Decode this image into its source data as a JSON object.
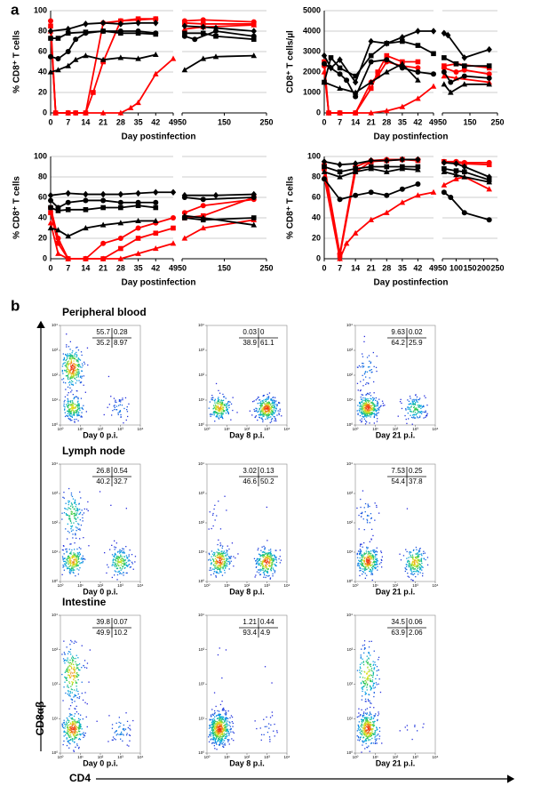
{
  "panel_labels": [
    "a",
    "b"
  ],
  "chart_data": [
    {
      "type": "line",
      "ylabel": "% CD8⁺ T cells",
      "xlabel": "Day postinfection",
      "ylim": [
        0,
        100
      ],
      "yticks": [
        0,
        20,
        40,
        60,
        80,
        100
      ],
      "grid": true,
      "x_segments": [
        {
          "xlim": [
            0,
            49
          ],
          "xticks": [
            0,
            7,
            14,
            21,
            28,
            35,
            42,
            49
          ]
        },
        {
          "xlim": [
            50,
            250
          ],
          "xticks": [
            50,
            150,
            250
          ]
        }
      ],
      "series": [
        {
          "color": "#ff0000",
          "marker": "circle",
          "x": [
            0,
            2,
            7,
            10,
            14,
            21,
            28,
            35,
            42,
            56,
            100,
            220
          ],
          "values": [
            90,
            0,
            0,
            0,
            0,
            88,
            90,
            91,
            92,
            90,
            91,
            89
          ]
        },
        {
          "color": "#ff0000",
          "marker": "square",
          "x": [
            0,
            2,
            7,
            10,
            14,
            17,
            21,
            28,
            35,
            42,
            56,
            100,
            220
          ],
          "values": [
            85,
            0,
            0,
            0,
            0,
            20,
            50,
            90,
            92,
            92,
            88,
            87,
            87
          ]
        },
        {
          "color": "#ff0000",
          "marker": "triangle",
          "x": [
            0,
            2,
            7,
            14,
            21,
            28,
            32,
            35,
            42,
            49,
            56,
            100,
            220
          ],
          "values": [
            80,
            0,
            0,
            0,
            0,
            0,
            5,
            10,
            38,
            53,
            82,
            84,
            86
          ]
        },
        {
          "color": "#000000",
          "marker": "diamond",
          "x": [
            0,
            7,
            14,
            21,
            28,
            35,
            42,
            56,
            100,
            130,
            220
          ],
          "values": [
            80,
            82,
            87,
            88,
            87,
            88,
            88,
            85,
            84,
            83,
            80
          ]
        },
        {
          "color": "#000000",
          "marker": "square",
          "x": [
            0,
            3,
            7,
            14,
            21,
            28,
            35,
            42,
            56,
            100,
            130,
            220
          ],
          "values": [
            73,
            73,
            78,
            79,
            80,
            78,
            78,
            77,
            78,
            78,
            75,
            72
          ]
        },
        {
          "color": "#000000",
          "marker": "circle",
          "x": [
            0,
            3,
            7,
            10,
            14,
            21,
            28,
            35,
            42,
            56,
            80,
            130,
            220
          ],
          "values": [
            55,
            53,
            60,
            72,
            78,
            80,
            80,
            80,
            78,
            75,
            72,
            80,
            75
          ]
        },
        {
          "color": "#000000",
          "marker": "triangle",
          "x": [
            0,
            3,
            7,
            10,
            14,
            21,
            28,
            35,
            42,
            56,
            100,
            130,
            220
          ],
          "values": [
            40,
            42,
            46,
            52,
            56,
            52,
            54,
            53,
            57,
            42,
            53,
            55,
            56
          ]
        }
      ]
    },
    {
      "type": "line",
      "ylabel": "CD8⁺ T cells/µl",
      "xlabel": "Day postinfection",
      "ylim": [
        0,
        5000
      ],
      "yticks": [
        0,
        1000,
        2000,
        3000,
        4000,
        5000
      ],
      "grid": true,
      "x_segments": [
        {
          "xlim": [
            0,
            49
          ],
          "xticks": [
            0,
            7,
            14,
            21,
            28,
            35,
            42,
            49
          ]
        },
        {
          "xlim": [
            50,
            250
          ],
          "xticks": [
            50,
            150,
            250
          ]
        }
      ],
      "series": [
        {
          "color": "#ff0000",
          "marker": "circle",
          "x": [
            0,
            2,
            7,
            14,
            21,
            24,
            28,
            35,
            42,
            56,
            100,
            130,
            220
          ],
          "values": [
            2300,
            0,
            0,
            0,
            1500,
            1800,
            2500,
            2300,
            2200,
            2200,
            2000,
            2100,
            1900
          ]
        },
        {
          "color": "#ff0000",
          "marker": "square",
          "x": [
            0,
            2,
            7,
            14,
            21,
            24,
            28,
            35,
            42,
            56,
            100,
            220
          ],
          "values": [
            2500,
            0,
            0,
            0,
            1200,
            2000,
            2800,
            2500,
            2500,
            2300,
            2400,
            2200
          ]
        },
        {
          "color": "#ff0000",
          "marker": "triangle",
          "x": [
            0,
            2,
            7,
            14,
            21,
            28,
            35,
            42,
            49,
            56,
            100,
            220
          ],
          "values": [
            2000,
            0,
            0,
            0,
            0,
            100,
            300,
            700,
            1300,
            1800,
            1700,
            1500
          ]
        },
        {
          "color": "#000000",
          "marker": "diamond",
          "x": [
            0,
            3,
            7,
            14,
            21,
            28,
            35,
            42,
            49,
            56,
            70,
            130,
            220
          ],
          "values": [
            2800,
            2200,
            2600,
            1500,
            3500,
            3400,
            3700,
            4000,
            4000,
            3900,
            3800,
            2700,
            3100
          ]
        },
        {
          "color": "#000000",
          "marker": "square",
          "x": [
            0,
            3,
            7,
            14,
            21,
            28,
            35,
            42,
            49,
            56,
            100,
            130,
            220
          ],
          "values": [
            1500,
            2700,
            2200,
            1800,
            2800,
            3400,
            3500,
            3300,
            2900,
            2700,
            2400,
            2300,
            2300
          ]
        },
        {
          "color": "#000000",
          "marker": "circle",
          "x": [
            0,
            7,
            10,
            14,
            21,
            28,
            35,
            42,
            49,
            56,
            80,
            130,
            220
          ],
          "values": [
            2400,
            1900,
            1600,
            800,
            2500,
            2600,
            2200,
            2000,
            1900,
            2000,
            1500,
            1800,
            1700
          ]
        },
        {
          "color": "#000000",
          "marker": "triangle",
          "x": [
            0,
            7,
            14,
            21,
            28,
            35,
            42,
            56,
            80,
            130,
            220
          ],
          "values": [
            1500,
            1200,
            1000,
            1500,
            2000,
            2400,
            1600,
            1400,
            1000,
            1400,
            1400
          ]
        }
      ]
    },
    {
      "type": "line",
      "ylabel": "% CD8⁺ T cells",
      "xlabel": "Day postinfection",
      "ylim": [
        0,
        100
      ],
      "yticks": [
        0,
        20,
        40,
        60,
        80,
        100
      ],
      "grid": true,
      "x_segments": [
        {
          "xlim": [
            0,
            49
          ],
          "xticks": [
            0,
            7,
            14,
            21,
            28,
            35,
            42,
            49
          ]
        },
        {
          "xlim": [
            50,
            250
          ],
          "xticks": [
            50,
            150,
            250
          ]
        }
      ],
      "series": [
        {
          "color": "#ff0000",
          "marker": "circle",
          "x": [
            0,
            3,
            7,
            14,
            21,
            28,
            35,
            42,
            49,
            56,
            100,
            220
          ],
          "values": [
            50,
            20,
            0,
            0,
            15,
            20,
            30,
            35,
            40,
            45,
            52,
            58
          ]
        },
        {
          "color": "#ff0000",
          "marker": "square",
          "x": [
            0,
            3,
            7,
            14,
            21,
            28,
            35,
            42,
            49,
            56,
            100,
            220
          ],
          "values": [
            45,
            15,
            0,
            0,
            0,
            10,
            20,
            25,
            30,
            40,
            42,
            60
          ]
        },
        {
          "color": "#ff0000",
          "marker": "triangle",
          "x": [
            0,
            3,
            7,
            14,
            21,
            28,
            35,
            42,
            49,
            56,
            100,
            220
          ],
          "values": [
            35,
            5,
            0,
            0,
            0,
            0,
            5,
            10,
            15,
            20,
            30,
            38
          ]
        },
        {
          "color": "#000000",
          "marker": "diamond",
          "x": [
            0,
            7,
            14,
            21,
            28,
            35,
            42,
            49,
            56,
            130,
            220
          ],
          "values": [
            62,
            64,
            63,
            63,
            63,
            64,
            65,
            65,
            62,
            62,
            63
          ]
        },
        {
          "color": "#000000",
          "marker": "circle",
          "x": [
            0,
            3,
            7,
            14,
            21,
            28,
            35,
            42,
            56,
            100,
            220
          ],
          "values": [
            57,
            50,
            55,
            57,
            57,
            55,
            55,
            55,
            60,
            58,
            60
          ]
        },
        {
          "color": "#000000",
          "marker": "square",
          "x": [
            0,
            3,
            7,
            14,
            21,
            28,
            35,
            42,
            56,
            100,
            220
          ],
          "values": [
            50,
            47,
            48,
            48,
            50,
            50,
            52,
            50,
            40,
            38,
            40
          ]
        },
        {
          "color": "#000000",
          "marker": "triangle",
          "x": [
            0,
            3,
            7,
            14,
            21,
            28,
            35,
            42,
            56,
            100,
            220
          ],
          "values": [
            30,
            28,
            22,
            30,
            33,
            35,
            37,
            37,
            42,
            40,
            33
          ]
        }
      ]
    },
    {
      "type": "line",
      "ylabel": "% CD8⁺ T cells",
      "xlabel": "Day postinfection",
      "ylim": [
        0,
        100
      ],
      "yticks": [
        0,
        20,
        40,
        60,
        80,
        100
      ],
      "grid": true,
      "x_segments": [
        {
          "xlim": [
            0,
            49
          ],
          "xticks": [
            0,
            7,
            14,
            21,
            28,
            35,
            42,
            49
          ]
        },
        {
          "xlim": [
            50,
            250
          ],
          "xticks": [
            50,
            100,
            150,
            200,
            250
          ]
        }
      ],
      "series": [
        {
          "color": "#ff0000",
          "marker": "circle",
          "x": [
            0,
            7,
            14,
            21,
            28,
            35,
            42,
            56,
            100,
            130,
            220
          ],
          "values": [
            92,
            5,
            90,
            96,
            97,
            97,
            97,
            95,
            95,
            94,
            94
          ]
        },
        {
          "color": "#ff0000",
          "marker": "square",
          "x": [
            0,
            7,
            14,
            21,
            28,
            35,
            42,
            56,
            100,
            130,
            220
          ],
          "values": [
            88,
            3,
            85,
            95,
            96,
            97,
            96,
            95,
            94,
            93,
            92
          ]
        },
        {
          "color": "#ff0000",
          "marker": "triangle",
          "x": [
            0,
            7,
            10,
            14,
            21,
            28,
            35,
            42,
            49,
            56,
            100,
            130,
            220
          ],
          "values": [
            80,
            0,
            15,
            25,
            38,
            45,
            55,
            62,
            65,
            72,
            78,
            80,
            68
          ]
        },
        {
          "color": "#000000",
          "marker": "diamond",
          "x": [
            0,
            7,
            14,
            21,
            28,
            35,
            42,
            56,
            100,
            130,
            220
          ],
          "values": [
            95,
            92,
            93,
            96,
            96,
            97,
            97,
            94,
            93,
            90,
            80
          ]
        },
        {
          "color": "#000000",
          "marker": "square",
          "x": [
            0,
            7,
            14,
            21,
            28,
            35,
            42,
            56,
            100,
            130,
            220
          ],
          "values": [
            90,
            85,
            88,
            90,
            90,
            90,
            90,
            88,
            86,
            85,
            77
          ]
        },
        {
          "color": "#000000",
          "marker": "triangle",
          "x": [
            0,
            7,
            14,
            21,
            28,
            35,
            42,
            56,
            100,
            130,
            220
          ],
          "values": [
            85,
            80,
            85,
            88,
            85,
            88,
            87,
            85,
            82,
            80,
            75
          ]
        },
        {
          "color": "#000000",
          "marker": "circle",
          "x": [
            0,
            7,
            14,
            21,
            28,
            35,
            42,
            56,
            80,
            130,
            220
          ],
          "values": [
            78,
            58,
            62,
            65,
            62,
            68,
            73,
            65,
            60,
            45,
            38
          ]
        }
      ]
    }
  ],
  "flow": {
    "y_axis_label": "CD8αβ",
    "x_axis_label": "CD4",
    "ticks": [
      "10⁰",
      "10¹",
      "10²",
      "10³",
      "10⁴"
    ],
    "rows": [
      {
        "title": "Peripheral blood",
        "plots": [
          {
            "label": "Day 0 p.i.",
            "quadrants": [
              55.7,
              0.28,
              35.2,
              8.97
            ]
          },
          {
            "label": "Day 8 p.i.",
            "quadrants": [
              0.03,
              0,
              38.9,
              61.1
            ]
          },
          {
            "label": "Day 21 p.i.",
            "quadrants": [
              9.63,
              0.02,
              64.2,
              25.9
            ]
          }
        ]
      },
      {
        "title": "Lymph node",
        "plots": [
          {
            "label": "Day 0 p.i.",
            "quadrants": [
              26.8,
              0.54,
              40.2,
              32.7
            ]
          },
          {
            "label": "Day 8 p.i.",
            "quadrants": [
              3.02,
              0.13,
              46.6,
              50.2
            ]
          },
          {
            "label": "Day 21 p.i.",
            "quadrants": [
              7.53,
              0.25,
              54.4,
              37.8
            ]
          }
        ]
      },
      {
        "title": "Intestine",
        "plots": [
          {
            "label": "Day 0 p.i.",
            "quadrants": [
              39.8,
              0.07,
              49.9,
              10.2
            ]
          },
          {
            "label": "Day 8 p.i.",
            "quadrants": [
              1.21,
              0.44,
              93.4,
              4.9
            ]
          },
          {
            "label": "Day 21 p.i.",
            "quadrants": [
              34.5,
              0.06,
              63.9,
              2.06
            ]
          }
        ]
      }
    ]
  }
}
